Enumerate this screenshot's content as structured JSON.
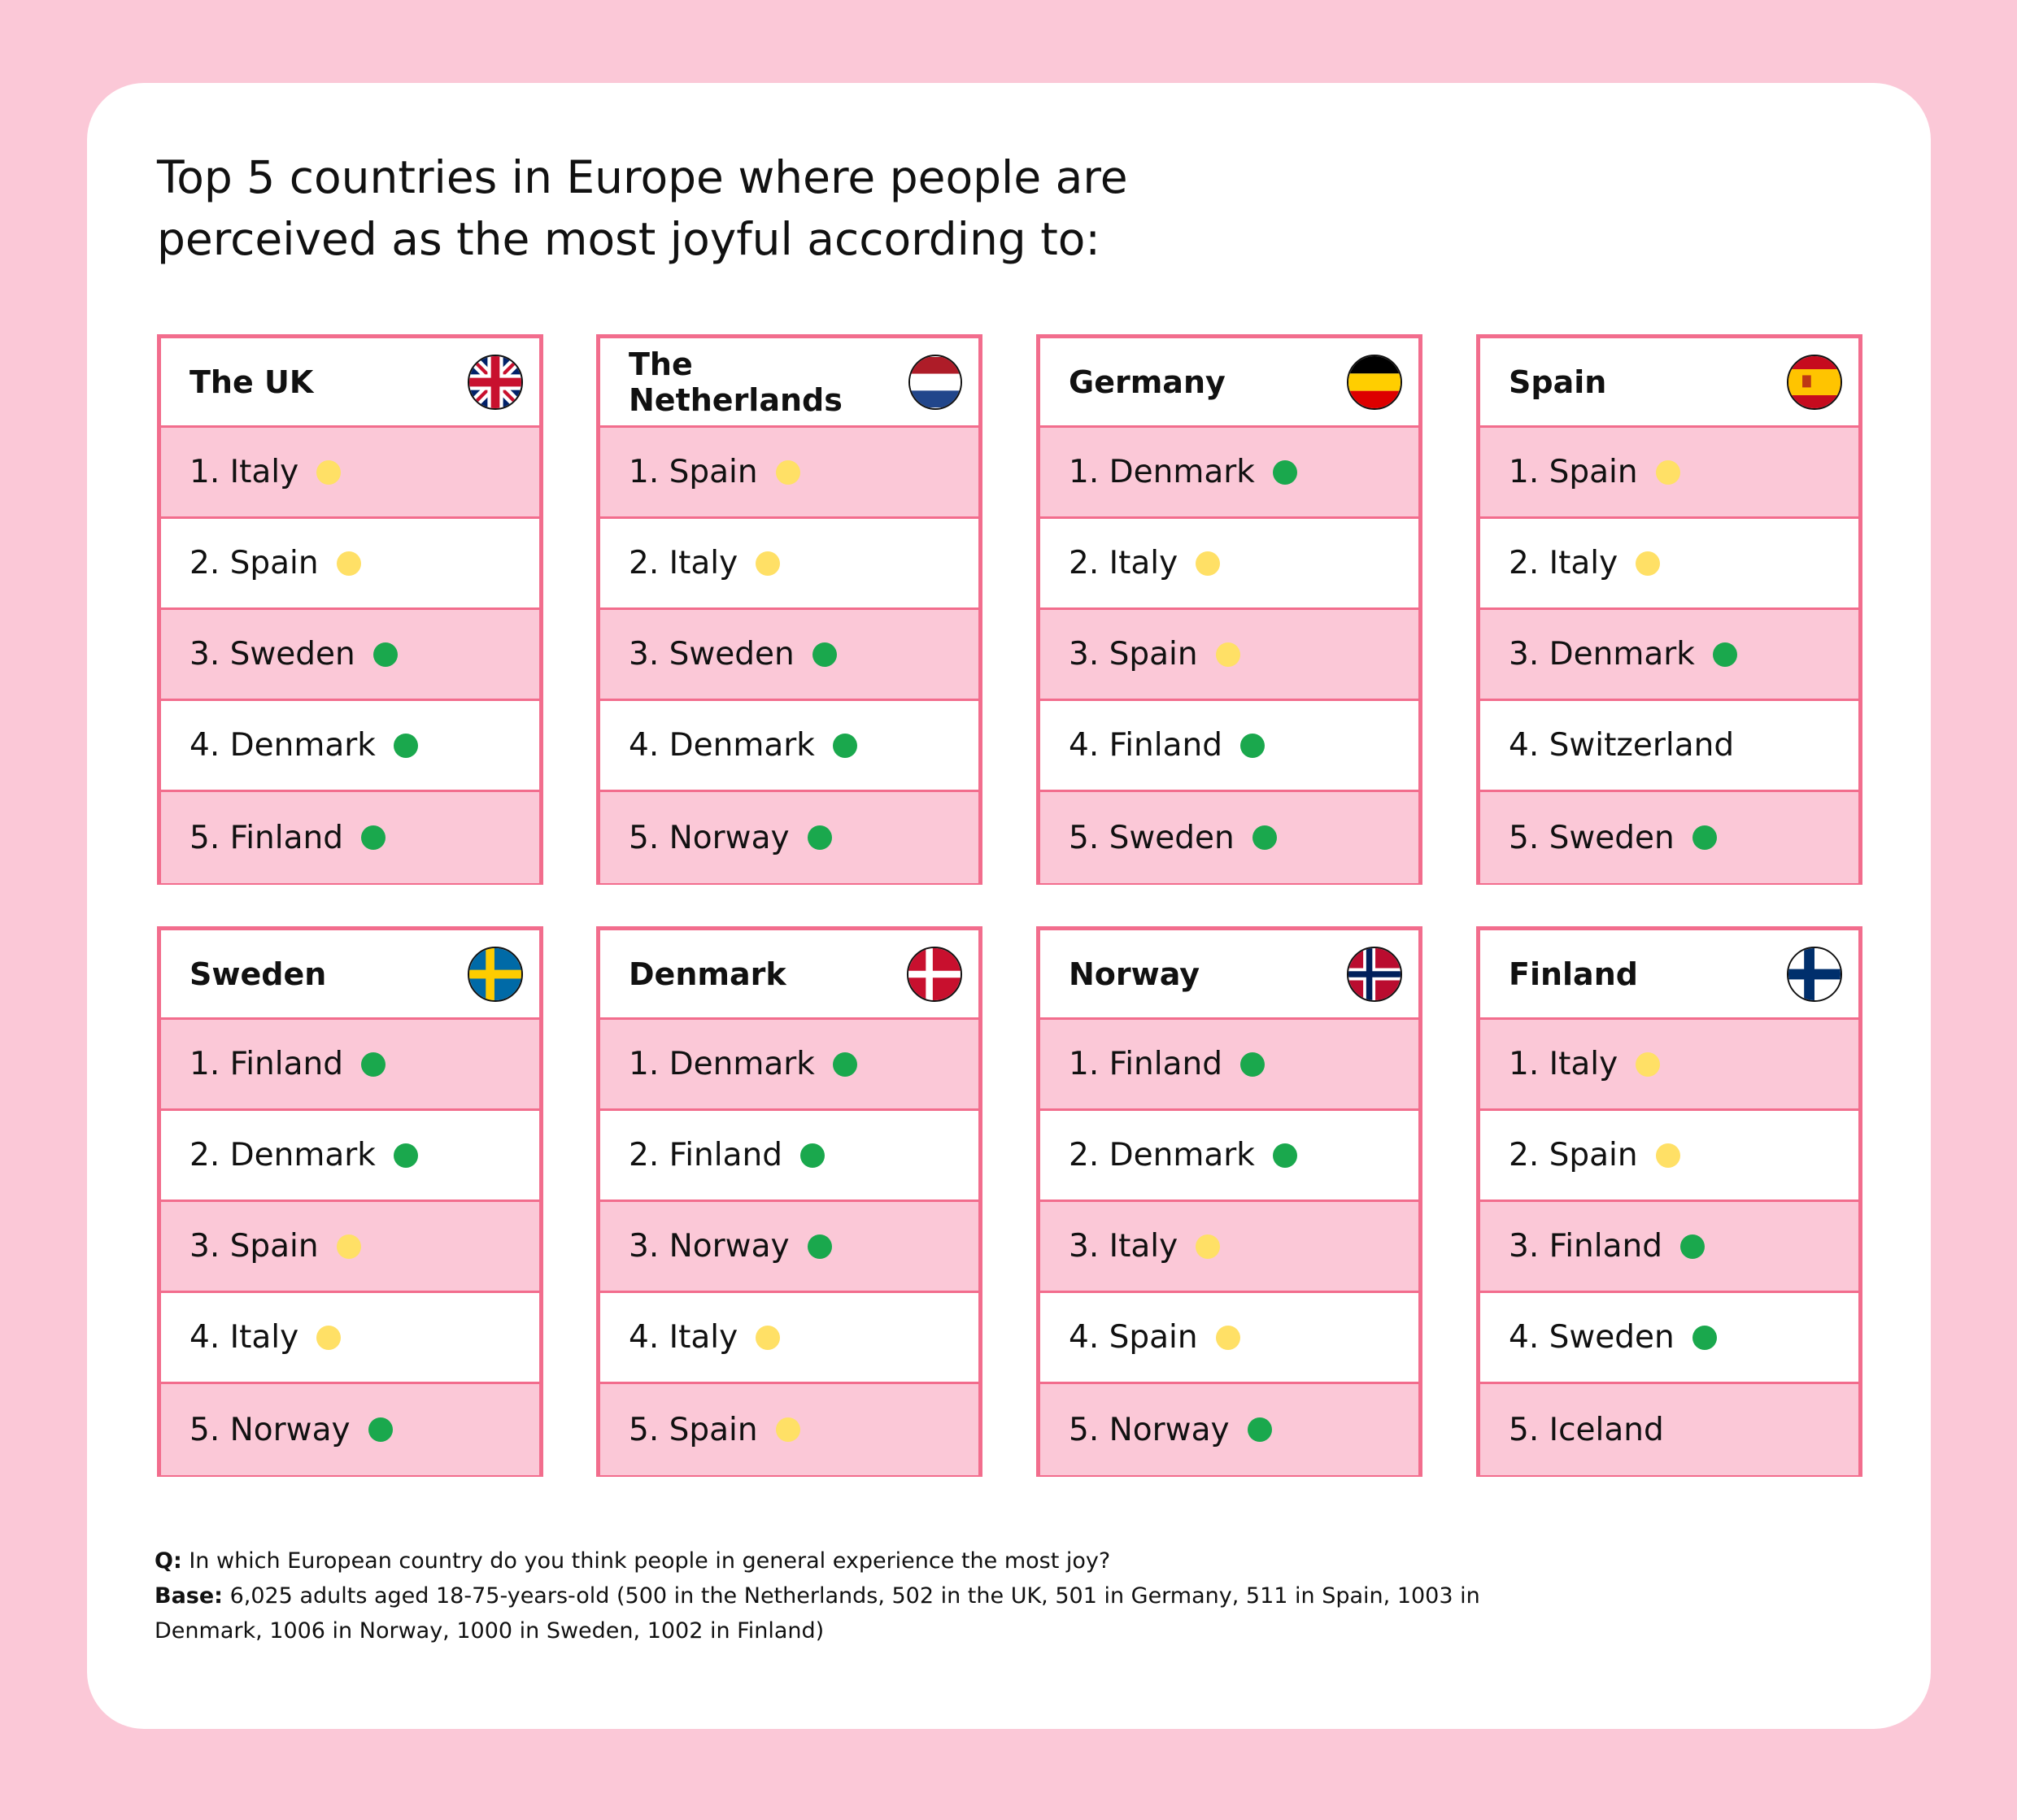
{
  "title": "Top 5 countries in Europe where people are perceived as the most joyful according to:",
  "colors": {
    "background": "#fbc8d7",
    "border": "#f26d8d",
    "green": "#1aa84d",
    "yellow": "#ffe066"
  },
  "cards": [
    {
      "country": "The UK",
      "flag": "uk-flag",
      "items": [
        {
          "label": "1. Italy",
          "dot": "yellow"
        },
        {
          "label": "2. Spain",
          "dot": "yellow"
        },
        {
          "label": "3. Sweden",
          "dot": "green"
        },
        {
          "label": "4. Denmark",
          "dot": "green"
        },
        {
          "label": "5. Finland",
          "dot": "green"
        }
      ]
    },
    {
      "country": "The Netherlands",
      "flag": "netherlands-flag",
      "items": [
        {
          "label": "1. Spain",
          "dot": "yellow"
        },
        {
          "label": "2. Italy",
          "dot": "yellow"
        },
        {
          "label": "3. Sweden",
          "dot": "green"
        },
        {
          "label": "4. Denmark",
          "dot": "green"
        },
        {
          "label": "5. Norway",
          "dot": "green"
        }
      ]
    },
    {
      "country": "Germany",
      "flag": "germany-flag",
      "items": [
        {
          "label": "1. Denmark",
          "dot": "green"
        },
        {
          "label": "2. Italy",
          "dot": "yellow"
        },
        {
          "label": "3. Spain",
          "dot": "yellow"
        },
        {
          "label": "4. Finland",
          "dot": "green"
        },
        {
          "label": "5. Sweden",
          "dot": "green"
        }
      ]
    },
    {
      "country": "Spain",
      "flag": "spain-flag",
      "items": [
        {
          "label": "1. Spain",
          "dot": "yellow"
        },
        {
          "label": "2. Italy",
          "dot": "yellow"
        },
        {
          "label": "3. Denmark",
          "dot": "green"
        },
        {
          "label": "4. Switzerland",
          "dot": null
        },
        {
          "label": "5. Sweden",
          "dot": "green"
        }
      ]
    },
    {
      "country": "Sweden",
      "flag": "sweden-flag",
      "items": [
        {
          "label": "1. Finland",
          "dot": "green"
        },
        {
          "label": "2. Denmark",
          "dot": "green"
        },
        {
          "label": "3. Spain",
          "dot": "yellow"
        },
        {
          "label": "4. Italy",
          "dot": "yellow"
        },
        {
          "label": "5. Norway",
          "dot": "green"
        }
      ]
    },
    {
      "country": "Denmark",
      "flag": "denmark-flag",
      "items": [
        {
          "label": "1. Denmark",
          "dot": "green"
        },
        {
          "label": "2. Finland",
          "dot": "green"
        },
        {
          "label": "3. Norway",
          "dot": "green"
        },
        {
          "label": "4. Italy",
          "dot": "yellow"
        },
        {
          "label": "5. Spain",
          "dot": "yellow"
        }
      ]
    },
    {
      "country": "Norway",
      "flag": "norway-flag",
      "items": [
        {
          "label": "1. Finland",
          "dot": "green"
        },
        {
          "label": "2. Denmark",
          "dot": "green"
        },
        {
          "label": "3. Italy",
          "dot": "yellow"
        },
        {
          "label": "4. Spain",
          "dot": "yellow"
        },
        {
          "label": "5. Norway",
          "dot": "green"
        }
      ]
    },
    {
      "country": "Finland",
      "flag": "finland-flag",
      "items": [
        {
          "label": "1. Italy",
          "dot": "yellow"
        },
        {
          "label": "2. Spain",
          "dot": "yellow"
        },
        {
          "label": "3. Finland",
          "dot": "green"
        },
        {
          "label": "4. Sweden",
          "dot": "green"
        },
        {
          "label": "5. Iceland",
          "dot": null
        }
      ]
    }
  ],
  "footnote": {
    "q_label": "Q:",
    "q_text": " In which European country do you think people in general experience the most joy?",
    "base_label": "Base:",
    "base_text": " 6,025 adults aged 18-75-years-old (500 in the Netherlands, 502 in the UK, 501 in Germany, 511 in Spain, 1003 in Denmark, 1006 in Norway, 1000 in Sweden, 1002 in Finland)"
  }
}
